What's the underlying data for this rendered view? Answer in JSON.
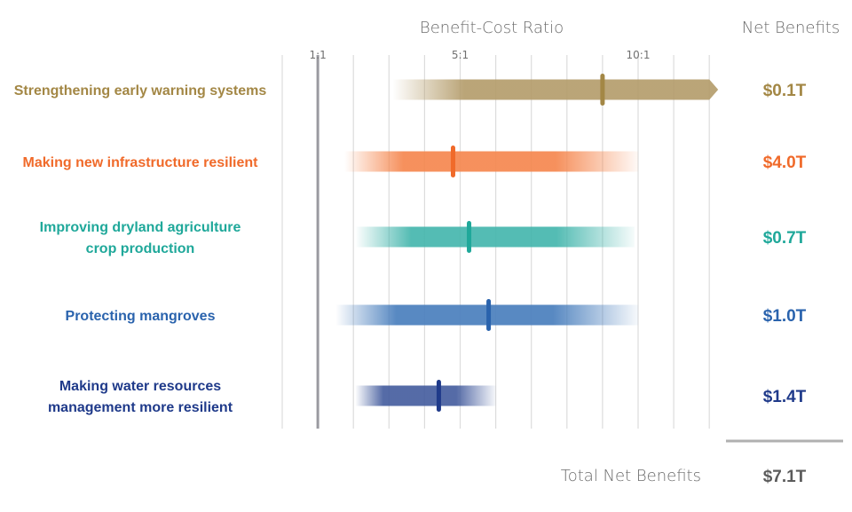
{
  "chart_data": {
    "type": "range-bar",
    "title": "Benefit-Cost Ratio",
    "right_column_title": "Net Benefits",
    "xlabel": "Benefit-Cost Ratio",
    "xlim": [
      0,
      12
    ],
    "tick_labels": [
      {
        "value": 1,
        "label": "1:1"
      },
      {
        "value": 5,
        "label": "5:1"
      },
      {
        "value": 10,
        "label": "10:1"
      }
    ],
    "gridlines": [
      0,
      1,
      2,
      3,
      4,
      5,
      6,
      7,
      8,
      9,
      10,
      11,
      12
    ],
    "reference_line": {
      "value": 1,
      "label": "1:1"
    },
    "series": [
      {
        "name": "Strengthening early warning systems",
        "label_lines": [
          "Strengthening early warning systems"
        ],
        "range_low": 3.1,
        "range_high": 12,
        "open_ended": true,
        "point": 9.0,
        "net_benefits": "$0.1T",
        "color": "#a38745",
        "bar_color": "#b39b69"
      },
      {
        "name": "Making new infrastructure resilient",
        "label_lines": [
          "Making new infrastructure resilient"
        ],
        "range_low": 1.75,
        "range_high": 10,
        "open_ended": false,
        "point": 4.8,
        "net_benefits": "$4.0T",
        "color": "#f06a2a",
        "bar_color": "#f5874f"
      },
      {
        "name": "Improving dryland agriculture crop production",
        "label_lines": [
          "Improving dryland agriculture",
          "crop production"
        ],
        "range_low": 2.05,
        "range_high": 9.9,
        "open_ended": false,
        "point": 5.25,
        "net_benefits": "$0.7T",
        "color": "#1fa89a",
        "bar_color": "#45b6ad"
      },
      {
        "name": "Protecting mangroves",
        "label_lines": [
          "Protecting mangroves"
        ],
        "range_low": 1.5,
        "range_high": 10,
        "open_ended": false,
        "point": 5.8,
        "net_benefits": "$1.0T",
        "color": "#2a63ad",
        "bar_color": "#4a7fbd"
      },
      {
        "name": "Making water resources management more resilient",
        "label_lines": [
          "Making water resources",
          "management more resilient"
        ],
        "range_low": 2.05,
        "range_high": 6.0,
        "open_ended": false,
        "point": 4.4,
        "net_benefits": "$1.4T",
        "color": "#1f3a8a",
        "bar_color": "#465e9f"
      }
    ],
    "total": {
      "label": "Total Net Benefits",
      "value": "$7.1T"
    },
    "legend": "none",
    "grid": true
  }
}
